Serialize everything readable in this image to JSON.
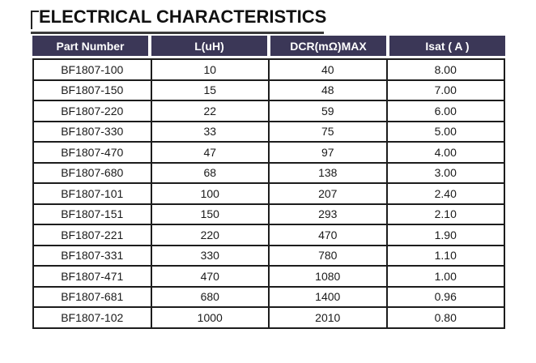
{
  "page": {
    "title": "ELECTRICAL CHARACTERISTICS"
  },
  "table": {
    "columns": [
      "Part Number",
      "L(uH)",
      "DCR(mΩ)MAX",
      "Isat ( A )"
    ],
    "column_keys": [
      "part",
      "l_uh",
      "dcr_mohm_max",
      "isat_a"
    ],
    "rows": [
      {
        "part": "BF1807-100",
        "l_uh": "10",
        "dcr_mohm_max": "40",
        "isat_a": "8.00"
      },
      {
        "part": "BF1807-150",
        "l_uh": "15",
        "dcr_mohm_max": "48",
        "isat_a": "7.00"
      },
      {
        "part": "BF1807-220",
        "l_uh": "22",
        "dcr_mohm_max": "59",
        "isat_a": "6.00"
      },
      {
        "part": "BF1807-330",
        "l_uh": "33",
        "dcr_mohm_max": "75",
        "isat_a": "5.00"
      },
      {
        "part": "BF1807-470",
        "l_uh": "47",
        "dcr_mohm_max": "97",
        "isat_a": "4.00"
      },
      {
        "part": "BF1807-680",
        "l_uh": "68",
        "dcr_mohm_max": "138",
        "isat_a": "3.00"
      },
      {
        "part": "BF1807-101",
        "l_uh": "100",
        "dcr_mohm_max": "207",
        "isat_a": "2.40"
      },
      {
        "part": "BF1807-151",
        "l_uh": "150",
        "dcr_mohm_max": "293",
        "isat_a": "2.10"
      },
      {
        "part": "BF1807-221",
        "l_uh": "220",
        "dcr_mohm_max": "470",
        "isat_a": "1.90"
      },
      {
        "part": "BF1807-331",
        "l_uh": "330",
        "dcr_mohm_max": "780",
        "isat_a": "1.10"
      },
      {
        "part": "BF1807-471",
        "l_uh": "470",
        "dcr_mohm_max": "1080",
        "isat_a": "1.00"
      },
      {
        "part": "BF1807-681",
        "l_uh": "680",
        "dcr_mohm_max": "1400",
        "isat_a": "0.96"
      },
      {
        "part": "BF1807-102",
        "l_uh": "1000",
        "dcr_mohm_max": "2010",
        "isat_a": "0.80"
      }
    ]
  },
  "colors": {
    "header_bg": "#3b3757",
    "header_text": "#ffffff",
    "border": "#1c1c1c",
    "title_text": "#111111"
  }
}
